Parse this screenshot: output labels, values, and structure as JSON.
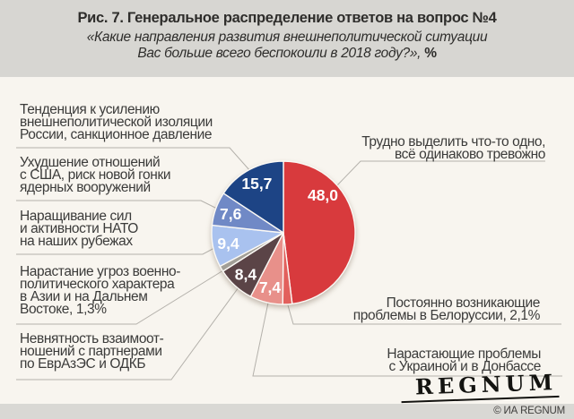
{
  "header": {
    "title": "Рис. 7. Генеральное распределение ответов на вопрос №4",
    "subtitle_line1": "«Какие направления развития внешнеполитической ситуации",
    "subtitle_line2": "Вас больше всего беспокоили в 2018 году?»,",
    "subtitle_suffix": " %"
  },
  "chart_data": {
    "type": "pie",
    "title": "Рис. 7. Генеральное распределение ответов на вопрос №4",
    "subtitle": "«Какие направления развития внешнеполитической ситуации Вас больше всего беспокоили в 2018 году?», %",
    "units": "%",
    "start_angle_deg": 0,
    "direction": "clockwise",
    "slices": [
      {
        "id": "hard-to-single-out",
        "label": "Трудно выделить что-то одно, всё одинаково тревожно",
        "value": 48.0,
        "display": "48,0",
        "color": "#d83a3d",
        "show_value_on_slice": true
      },
      {
        "id": "belarus",
        "label": "Постоянно возникающие проблемы в Белоруссии",
        "value": 2.1,
        "display": "2,1",
        "color": "#e2605c",
        "show_value_on_slice": false
      },
      {
        "id": "ukraine-donbass",
        "label": "Нарастающие проблемы с Украиной и в Донбассе",
        "value": 7.4,
        "display": "7,4",
        "color": "#e8908a",
        "show_value_on_slice": true
      },
      {
        "id": "eaeu-odkb",
        "label": "Невнятность взаимоотношений с партнерами по ЕврАзЭС и ОДКБ",
        "value": 8.4,
        "display": "8,4",
        "color": "#5b4447",
        "show_value_on_slice": true
      },
      {
        "id": "asia-far-east",
        "label": "Нарастание угроз военно-политического характера в Азии и на Дальнем Востоке",
        "value": 1.3,
        "display": "1,3",
        "color": "#a29f97",
        "show_value_on_slice": false
      },
      {
        "id": "nato-buildup",
        "label": "Наращивание сил и активности НАТО на наших рубежах",
        "value": 9.4,
        "display": "9,4",
        "color": "#a9c2ef",
        "show_value_on_slice": true
      },
      {
        "id": "usa-arms-race",
        "label": "Ухудшение отношений с США, риск новой гонки ядерных вооружений",
        "value": 7.6,
        "display": "7,6",
        "color": "#7089c6",
        "show_value_on_slice": true
      },
      {
        "id": "isolation-sanctions",
        "label": "Тенденция к усилению внешнеполитической изоляции России, санкционное давление",
        "value": 15.7,
        "display": "15,7",
        "color": "#1d4485",
        "show_value_on_slice": true
      }
    ]
  },
  "callouts": {
    "left": [
      {
        "lines": [
          "Тенденция к усилению",
          "внешнеполитической изоляции",
          "России, санкционное давление"
        ]
      },
      {
        "lines": [
          "Ухудшение отношений",
          "с США, риск новой гонки",
          "ядерных вооружений"
        ]
      },
      {
        "lines": [
          "Наращивание сил",
          "и активности НАТО",
          "на наших рубежах"
        ]
      },
      {
        "lines": [
          "Нарастание угроз военно-",
          "политического характера",
          "в Азии и на Дальнем",
          "Востоке, 1,3%"
        ]
      },
      {
        "lines": [
          "Невнятность взаимоот-",
          "ношений с партнерами",
          "по ЕврАзЭС и ОДКБ"
        ]
      }
    ],
    "right": [
      {
        "lines": [
          "Трудно выделить что-то одно,",
          "всё одинаково тревожно"
        ]
      },
      {
        "lines": [
          "Постоянно возникающие",
          "проблемы в Белоруссии, 2,1%"
        ]
      },
      {
        "lines": [
          "Нарастающие проблемы",
          "с Украиной и в Донбассе"
        ]
      }
    ]
  },
  "footer": {
    "logo_text": "REGNUM",
    "copyright": "© ИА REGNUM"
  },
  "colors": {
    "header_bg": "#d7d6d2",
    "body_bg": "#f8f5ef",
    "footer_bg": "#d9d8d4",
    "leader_line": "#b4b1ab",
    "label_text": "#3b3b3a",
    "title_text": "#2e2d2b",
    "slice_label_text": "#ffffff"
  }
}
